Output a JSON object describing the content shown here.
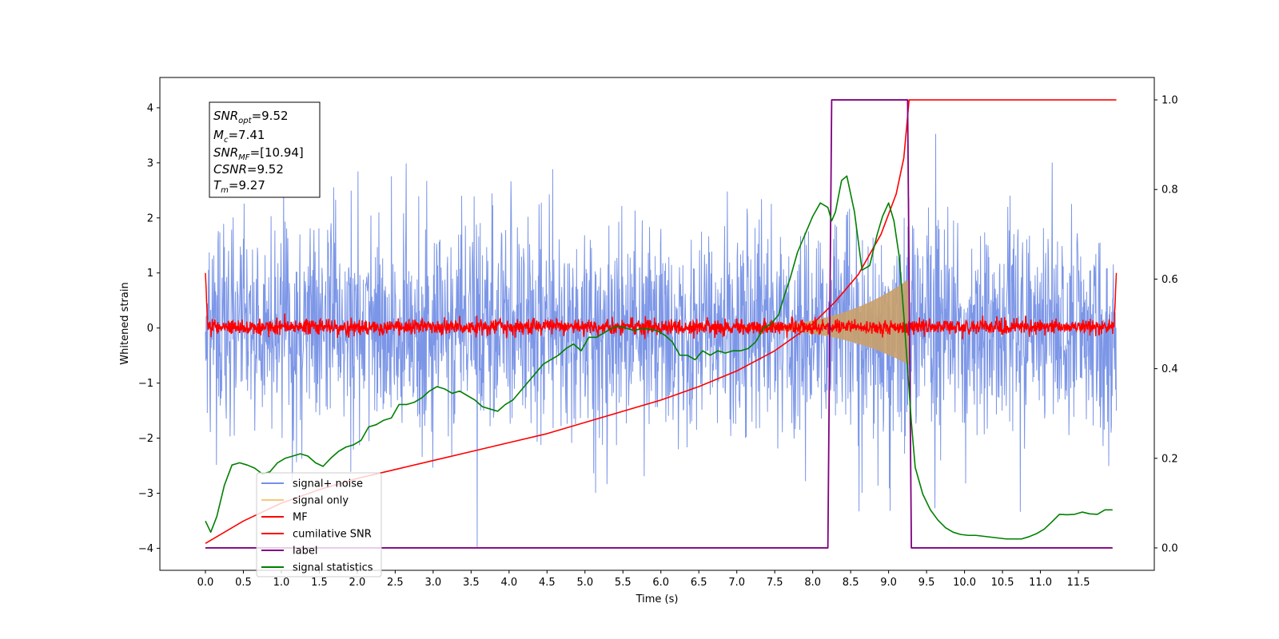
{
  "chart_data": {
    "type": "line",
    "xlabel": "Time (s)",
    "ylabel_left": "Whitened strain",
    "xlim": [
      -0.6,
      12.5
    ],
    "ylim_left": [
      -4.4,
      4.55
    ],
    "ylim_right": [
      -0.05,
      1.05
    ],
    "x_ticks": [
      "0.0",
      "0.5",
      "1.0",
      "1.5",
      "2.0",
      "2.5",
      "3.0",
      "3.5",
      "4.0",
      "4.5",
      "5.0",
      "5.5",
      "6.0",
      "6.5",
      "7.0",
      "7.5",
      "8.0",
      "8.5",
      "9.0",
      "9.5",
      "10.0",
      "10.5",
      "11.0",
      "11.5"
    ],
    "y_ticks_left": [
      "4",
      "3",
      "2",
      "1",
      "0",
      "−1",
      "−2",
      "−3",
      "−4"
    ],
    "y_ticks_right": [
      "1.0",
      "0.8",
      "0.6",
      "0.4",
      "0.2",
      "0.0"
    ],
    "annotation": {
      "snr_opt": {
        "main": "SNR",
        "sub": "opt",
        "value": "=9.52"
      },
      "mc": {
        "main": "M",
        "sub": "c",
        "value": "=7.41"
      },
      "snr_mf": {
        "main": "SNR",
        "sub": "MF",
        "value": "=[10.94]"
      },
      "csnr": {
        "main": "CSNR",
        "sub": "",
        "value": "=9.52"
      },
      "tm": {
        "main": "T",
        "sub": "m",
        "value": "=9.27"
      }
    },
    "legend": {
      "placement": "lower-left",
      "entries": [
        {
          "label": "signal+ noise",
          "color": "#7590e6"
        },
        {
          "label": "signal only",
          "color": "#f5c97a"
        },
        {
          "label": "MF",
          "color": "#ff0000"
        },
        {
          "label": "cumilative SNR",
          "color": "#ff0000"
        },
        {
          "label": "label",
          "color": "#800080"
        },
        {
          "label": "signal statistics",
          "color": "#008000"
        }
      ]
    },
    "series": [
      {
        "name": "signal+ noise",
        "axis": "left",
        "style": "noise-band",
        "color": "#7590e6",
        "x_range": [
          0.0,
          12.0
        ],
        "amplitude_typical": 1.5,
        "amplitude_peak": 4.1
      },
      {
        "name": "signal only",
        "axis": "left",
        "style": "chirp-envelope",
        "color": "#c9a06a",
        "start_x": 7.0,
        "end_x": 9.27,
        "peak_amplitude": 0.85
      },
      {
        "name": "MF",
        "axis": "left",
        "style": "noise-band",
        "color": "#ff0000",
        "x_range": [
          0.0,
          12.0
        ],
        "amplitude_typical": 0.1,
        "edge_value": 1.0
      },
      {
        "name": "cumilative SNR",
        "axis": "right",
        "color": "#ff0000",
        "x": [
          0.0,
          0.5,
          1.0,
          1.5,
          2.0,
          2.5,
          3.0,
          3.5,
          4.0,
          4.5,
          5.0,
          5.5,
          6.0,
          6.5,
          7.0,
          7.5,
          8.0,
          8.3,
          8.6,
          8.9,
          9.1,
          9.2,
          9.27,
          9.3,
          12.0
        ],
        "y": [
          0.01,
          0.06,
          0.1,
          0.13,
          0.155,
          0.175,
          0.195,
          0.215,
          0.235,
          0.255,
          0.28,
          0.305,
          0.33,
          0.36,
          0.395,
          0.44,
          0.5,
          0.55,
          0.61,
          0.7,
          0.79,
          0.87,
          1.0,
          1.0,
          1.0
        ]
      },
      {
        "name": "label",
        "axis": "right",
        "color": "#800080",
        "x": [
          0.0,
          8.2,
          8.25,
          9.25,
          9.3,
          11.95
        ],
        "y": [
          0.0,
          0.0,
          1.0,
          1.0,
          0.0,
          0.0
        ]
      },
      {
        "name": "signal statistics",
        "axis": "right",
        "color": "#008000",
        "x": [
          0.0,
          0.07,
          0.15,
          0.25,
          0.35,
          0.45,
          0.55,
          0.65,
          0.75,
          0.85,
          0.95,
          1.05,
          1.15,
          1.25,
          1.35,
          1.45,
          1.55,
          1.65,
          1.75,
          1.85,
          1.95,
          2.05,
          2.15,
          2.25,
          2.35,
          2.45,
          2.55,
          2.65,
          2.75,
          2.85,
          2.95,
          3.05,
          3.15,
          3.25,
          3.35,
          3.45,
          3.55,
          3.65,
          3.75,
          3.85,
          3.95,
          4.05,
          4.15,
          4.25,
          4.35,
          4.45,
          4.55,
          4.65,
          4.75,
          4.85,
          4.95,
          5.05,
          5.15,
          5.25,
          5.35,
          5.45,
          5.55,
          5.65,
          5.75,
          5.85,
          5.95,
          6.05,
          6.15,
          6.25,
          6.35,
          6.45,
          6.55,
          6.65,
          6.75,
          6.85,
          6.95,
          7.05,
          7.15,
          7.25,
          7.35,
          7.45,
          7.55,
          7.62,
          7.7,
          7.8,
          7.9,
          8.0,
          8.1,
          8.2,
          8.25,
          8.3,
          8.38,
          8.45,
          8.55,
          8.65,
          8.75,
          8.85,
          8.92,
          9.0,
          9.07,
          9.14,
          9.2,
          9.25,
          9.3,
          9.35,
          9.45,
          9.55,
          9.65,
          9.75,
          9.85,
          9.95,
          10.05,
          10.15,
          10.25,
          10.35,
          10.45,
          10.55,
          10.65,
          10.75,
          10.85,
          10.95,
          11.05,
          11.15,
          11.25,
          11.35,
          11.45,
          11.55,
          11.65,
          11.75,
          11.85,
          11.95
        ],
        "y": [
          0.06,
          0.035,
          0.07,
          0.14,
          0.185,
          0.19,
          0.185,
          0.178,
          0.165,
          0.17,
          0.19,
          0.2,
          0.205,
          0.21,
          0.205,
          0.19,
          0.182,
          0.2,
          0.215,
          0.225,
          0.23,
          0.24,
          0.27,
          0.275,
          0.285,
          0.29,
          0.32,
          0.32,
          0.325,
          0.335,
          0.35,
          0.36,
          0.355,
          0.345,
          0.35,
          0.34,
          0.33,
          0.315,
          0.31,
          0.305,
          0.32,
          0.33,
          0.35,
          0.37,
          0.39,
          0.41,
          0.42,
          0.43,
          0.445,
          0.455,
          0.44,
          0.47,
          0.47,
          0.48,
          0.49,
          0.495,
          0.49,
          0.485,
          0.49,
          0.488,
          0.485,
          0.475,
          0.46,
          0.43,
          0.43,
          0.42,
          0.44,
          0.43,
          0.44,
          0.435,
          0.44,
          0.44,
          0.445,
          0.46,
          0.49,
          0.5,
          0.52,
          0.56,
          0.6,
          0.66,
          0.7,
          0.74,
          0.77,
          0.76,
          0.73,
          0.75,
          0.82,
          0.83,
          0.75,
          0.62,
          0.63,
          0.7,
          0.74,
          0.77,
          0.73,
          0.65,
          0.52,
          0.4,
          0.28,
          0.18,
          0.12,
          0.085,
          0.062,
          0.045,
          0.035,
          0.03,
          0.028,
          0.028,
          0.026,
          0.024,
          0.022,
          0.02,
          0.02,
          0.02,
          0.025,
          0.032,
          0.042,
          0.058,
          0.075,
          0.074,
          0.075,
          0.08,
          0.076,
          0.075,
          0.085,
          0.085
        ]
      }
    ]
  }
}
